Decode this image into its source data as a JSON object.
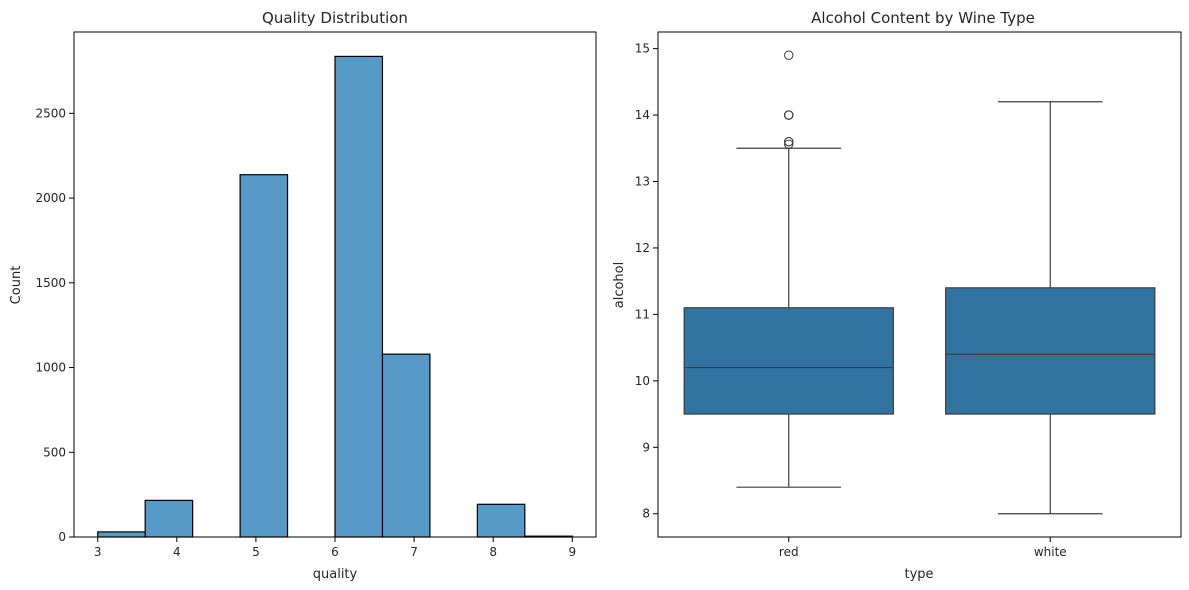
{
  "chart_data": [
    {
      "type": "bar",
      "title": "Quality Distribution",
      "xlabel": "quality",
      "ylabel": "Count",
      "xlim": [
        2.7,
        9.3
      ],
      "ylim": [
        0,
        2980
      ],
      "x_ticks": [
        "3",
        "4",
        "5",
        "6",
        "7",
        "8",
        "9"
      ],
      "y_ticks": [
        "0",
        "500",
        "1000",
        "1500",
        "2000",
        "2500"
      ],
      "bins": [
        {
          "x0": 3.0,
          "x1": 3.6,
          "count": 30
        },
        {
          "x0": 3.6,
          "x1": 4.2,
          "count": 216
        },
        {
          "x0": 4.2,
          "x1": 4.8,
          "count": 0
        },
        {
          "x0": 4.8,
          "x1": 5.4,
          "count": 2138
        },
        {
          "x0": 5.4,
          "x1": 6.0,
          "count": 0
        },
        {
          "x0": 6.0,
          "x1": 6.6,
          "count": 2836
        },
        {
          "x0": 6.6,
          "x1": 7.2,
          "count": 1079
        },
        {
          "x0": 7.2,
          "x1": 7.8,
          "count": 0
        },
        {
          "x0": 7.8,
          "x1": 8.4,
          "count": 193
        },
        {
          "x0": 8.4,
          "x1": 9.0,
          "count": 5
        }
      ],
      "bar_color": "#5799c7",
      "edge_color": "#000000",
      "grid": false
    },
    {
      "type": "box",
      "title": "Alcohol Content by Wine Type",
      "xlabel": "type",
      "ylabel": "alcohol",
      "ylim": [
        7.65,
        15.25
      ],
      "y_ticks": [
        "8",
        "9",
        "10",
        "11",
        "12",
        "13",
        "14",
        "15"
      ],
      "categories": [
        "red",
        "white"
      ],
      "boxes": [
        {
          "category": "red",
          "whisker_low": 8.4,
          "q1": 9.5,
          "median": 10.2,
          "q3": 11.1,
          "whisker_high": 13.5,
          "outliers": [
            13.56,
            13.6,
            13.6,
            14.0,
            14.0,
            14.0,
            14.9
          ]
        },
        {
          "category": "white",
          "whisker_low": 8.0,
          "q1": 9.5,
          "median": 10.4,
          "q3": 11.4,
          "whisker_high": 14.2,
          "outliers": []
        }
      ],
      "box_color": "#3274a1",
      "line_color": "#3d3d3d",
      "grid": false
    }
  ]
}
